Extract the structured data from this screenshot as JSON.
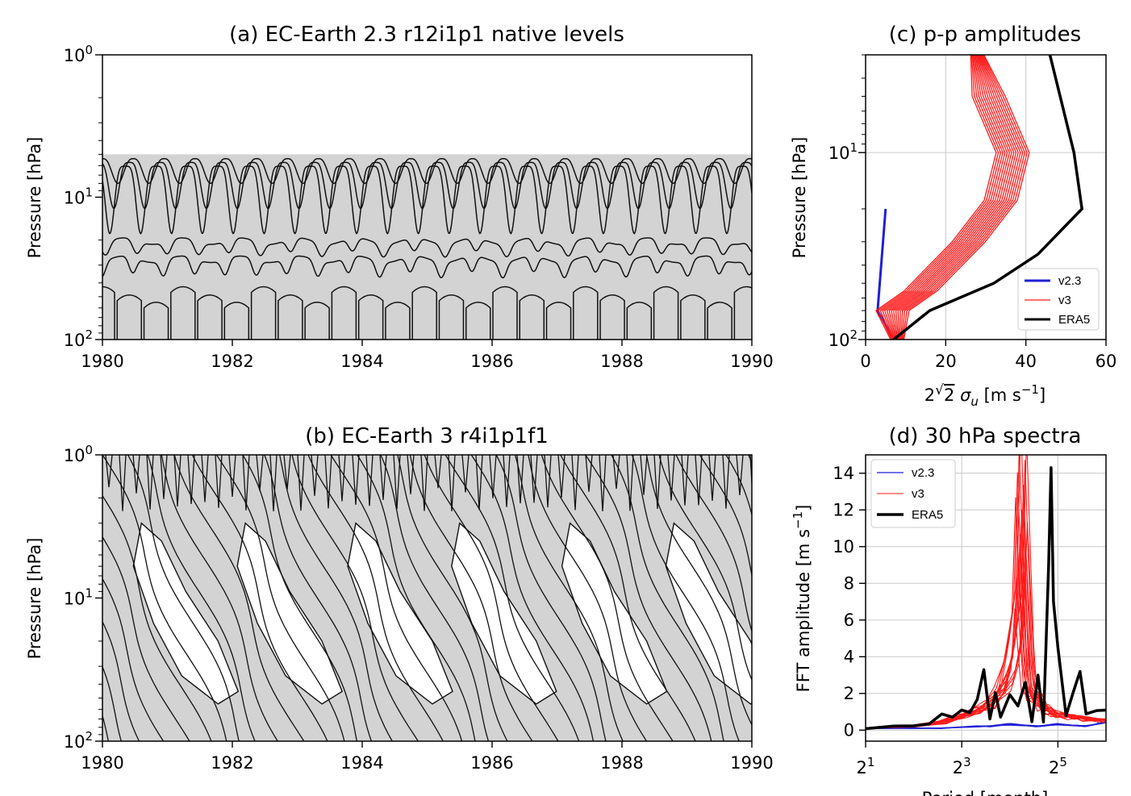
{
  "chart_data": [
    {
      "panel": "a",
      "type": "heatmap",
      "title": "(a) EC-Earth 2.3 r12i1p1 native levels",
      "ylabel": "Pressure [hPa]",
      "xlabel": "",
      "xlim": [
        1980,
        1990
      ],
      "x_ticks": [
        "1980",
        "1982",
        "1984",
        "1986",
        "1988",
        "1990"
      ],
      "ylim": [
        100,
        1
      ],
      "y_log": true,
      "y_ticks": [
        {
          "base": "10",
          "exp": "0"
        },
        {
          "base": "10",
          "exp": "1"
        },
        {
          "base": "10",
          "exp": "2"
        }
      ],
      "data_top_hPa": 5,
      "fill_color": "#d3d3d3",
      "contour_color": "#111111",
      "cycle_period_months": 5.7,
      "contour_levels_hPa": [
        8,
        12,
        18,
        25,
        35
      ]
    },
    {
      "panel": "b",
      "type": "heatmap",
      "title": "(b) EC-Earth 3 r4i1p1f1",
      "ylabel": "Pressure [hPa]",
      "xlabel": "",
      "xlim": [
        1980,
        1990
      ],
      "x_ticks": [
        "1980",
        "1982",
        "1984",
        "1986",
        "1988",
        "1990"
      ],
      "ylim": [
        100,
        1
      ],
      "y_log": true,
      "y_ticks": [
        {
          "base": "10",
          "exp": "0"
        },
        {
          "base": "10",
          "exp": "1"
        },
        {
          "base": "10",
          "exp": "2"
        }
      ],
      "qbo_easterly_onsets": [
        1980.6,
        1982.2,
        1983.9,
        1985.5,
        1987.2,
        1988.8
      ],
      "fill_color": "#d3d3d3",
      "contour_color": "#111111"
    },
    {
      "panel": "c",
      "type": "line",
      "title": "(c) p-p amplitudes",
      "ylabel": "Pressure [hPa]",
      "xlabel": "2√2 σu [m s−1]",
      "xlim": [
        0,
        60
      ],
      "x_ticks": [
        "0",
        "20",
        "40",
        "60"
      ],
      "ylim": [
        100,
        3
      ],
      "y_log": true,
      "y_ticks": [
        {
          "base": "10",
          "exp": "1"
        },
        {
          "base": "10",
          "exp": "2"
        }
      ],
      "grid": true,
      "legend_position": "lower-right",
      "series": [
        {
          "name": "v2.3",
          "color": "#1f1fd6",
          "width": 3,
          "x": [
            5,
            3,
            7
          ],
          "y": [
            20,
            70,
            100
          ]
        },
        {
          "name": "v3",
          "color": "#ff1a1a",
          "width": 1.3,
          "ensemble_members": 16,
          "x": [
            28,
            31,
            37,
            34,
            26,
            14,
            7,
            8
          ],
          "y": [
            3,
            5,
            10,
            18,
            30,
            55,
            70,
            100
          ]
        },
        {
          "name": "ERA5",
          "color": "#000000",
          "width": 3.5,
          "x": [
            46,
            52,
            54,
            43,
            32,
            16,
            7
          ],
          "y": [
            3,
            10,
            20,
            35,
            50,
            70,
            100
          ]
        }
      ]
    },
    {
      "panel": "d",
      "type": "line",
      "title": "(d) 30 hPa spectra",
      "ylabel": "FFT amplitude [m s−1]",
      "xlabel": "Period [month]",
      "x_log2": true,
      "xlim_log2": [
        1,
        6
      ],
      "x_ticks": [
        {
          "base": "2",
          "exp": "1"
        },
        {
          "base": "2",
          "exp": "3"
        },
        {
          "base": "2",
          "exp": "5"
        }
      ],
      "ylim": [
        -0.6,
        15
      ],
      "y_ticks": [
        "0",
        "2",
        "4",
        "6",
        "8",
        "10",
        "12",
        "14"
      ],
      "grid": true,
      "legend_position": "upper-left",
      "series": [
        {
          "name": "v2.3",
          "color": "#1f1fd6",
          "width": 1.3,
          "ensemble_members": 4,
          "x": [
            2,
            4,
            6,
            10,
            12,
            16,
            24,
            32,
            48,
            64
          ],
          "y": [
            0.1,
            0.1,
            0.1,
            0.2,
            0.2,
            0.3,
            0.2,
            0.3,
            0.2,
            0.4
          ]
        },
        {
          "name": "v3",
          "color": "#ff1a1a",
          "width": 1.1,
          "ensemble_members": 16,
          "x": [
            2,
            4,
            6,
            8,
            10,
            12,
            14,
            16,
            18,
            19,
            20,
            21,
            22,
            24,
            26,
            28,
            32,
            40,
            48,
            64
          ],
          "y": [
            0.1,
            0.2,
            0.4,
            0.7,
            1.0,
            1.3,
            2.0,
            3.5,
            6.0,
            12.0,
            7.5,
            3.5,
            2.0,
            1.6,
            1.2,
            1.0,
            0.8,
            0.7,
            0.6,
            0.5
          ]
        },
        {
          "name": "ERA5",
          "color": "#000000",
          "width": 3.5,
          "x": [
            2,
            3,
            4,
            5,
            6,
            7,
            8,
            9,
            10,
            11,
            12,
            13,
            14,
            16,
            18,
            20,
            22,
            24,
            26,
            28,
            29,
            30,
            32,
            36,
            40,
            44,
            48,
            56,
            64
          ],
          "y": [
            0.1,
            0.2,
            0.2,
            0.4,
            0.8,
            0.6,
            1.2,
            0.9,
            1.4,
            3.3,
            0.6,
            1.7,
            0.7,
            2.0,
            1.1,
            2.6,
            0.5,
            3.0,
            0.4,
            9.0,
            14.3,
            7.0,
            4.5,
            0.7,
            1.8,
            3.2,
            0.8,
            0.9,
            1.2
          ]
        }
      ]
    }
  ]
}
